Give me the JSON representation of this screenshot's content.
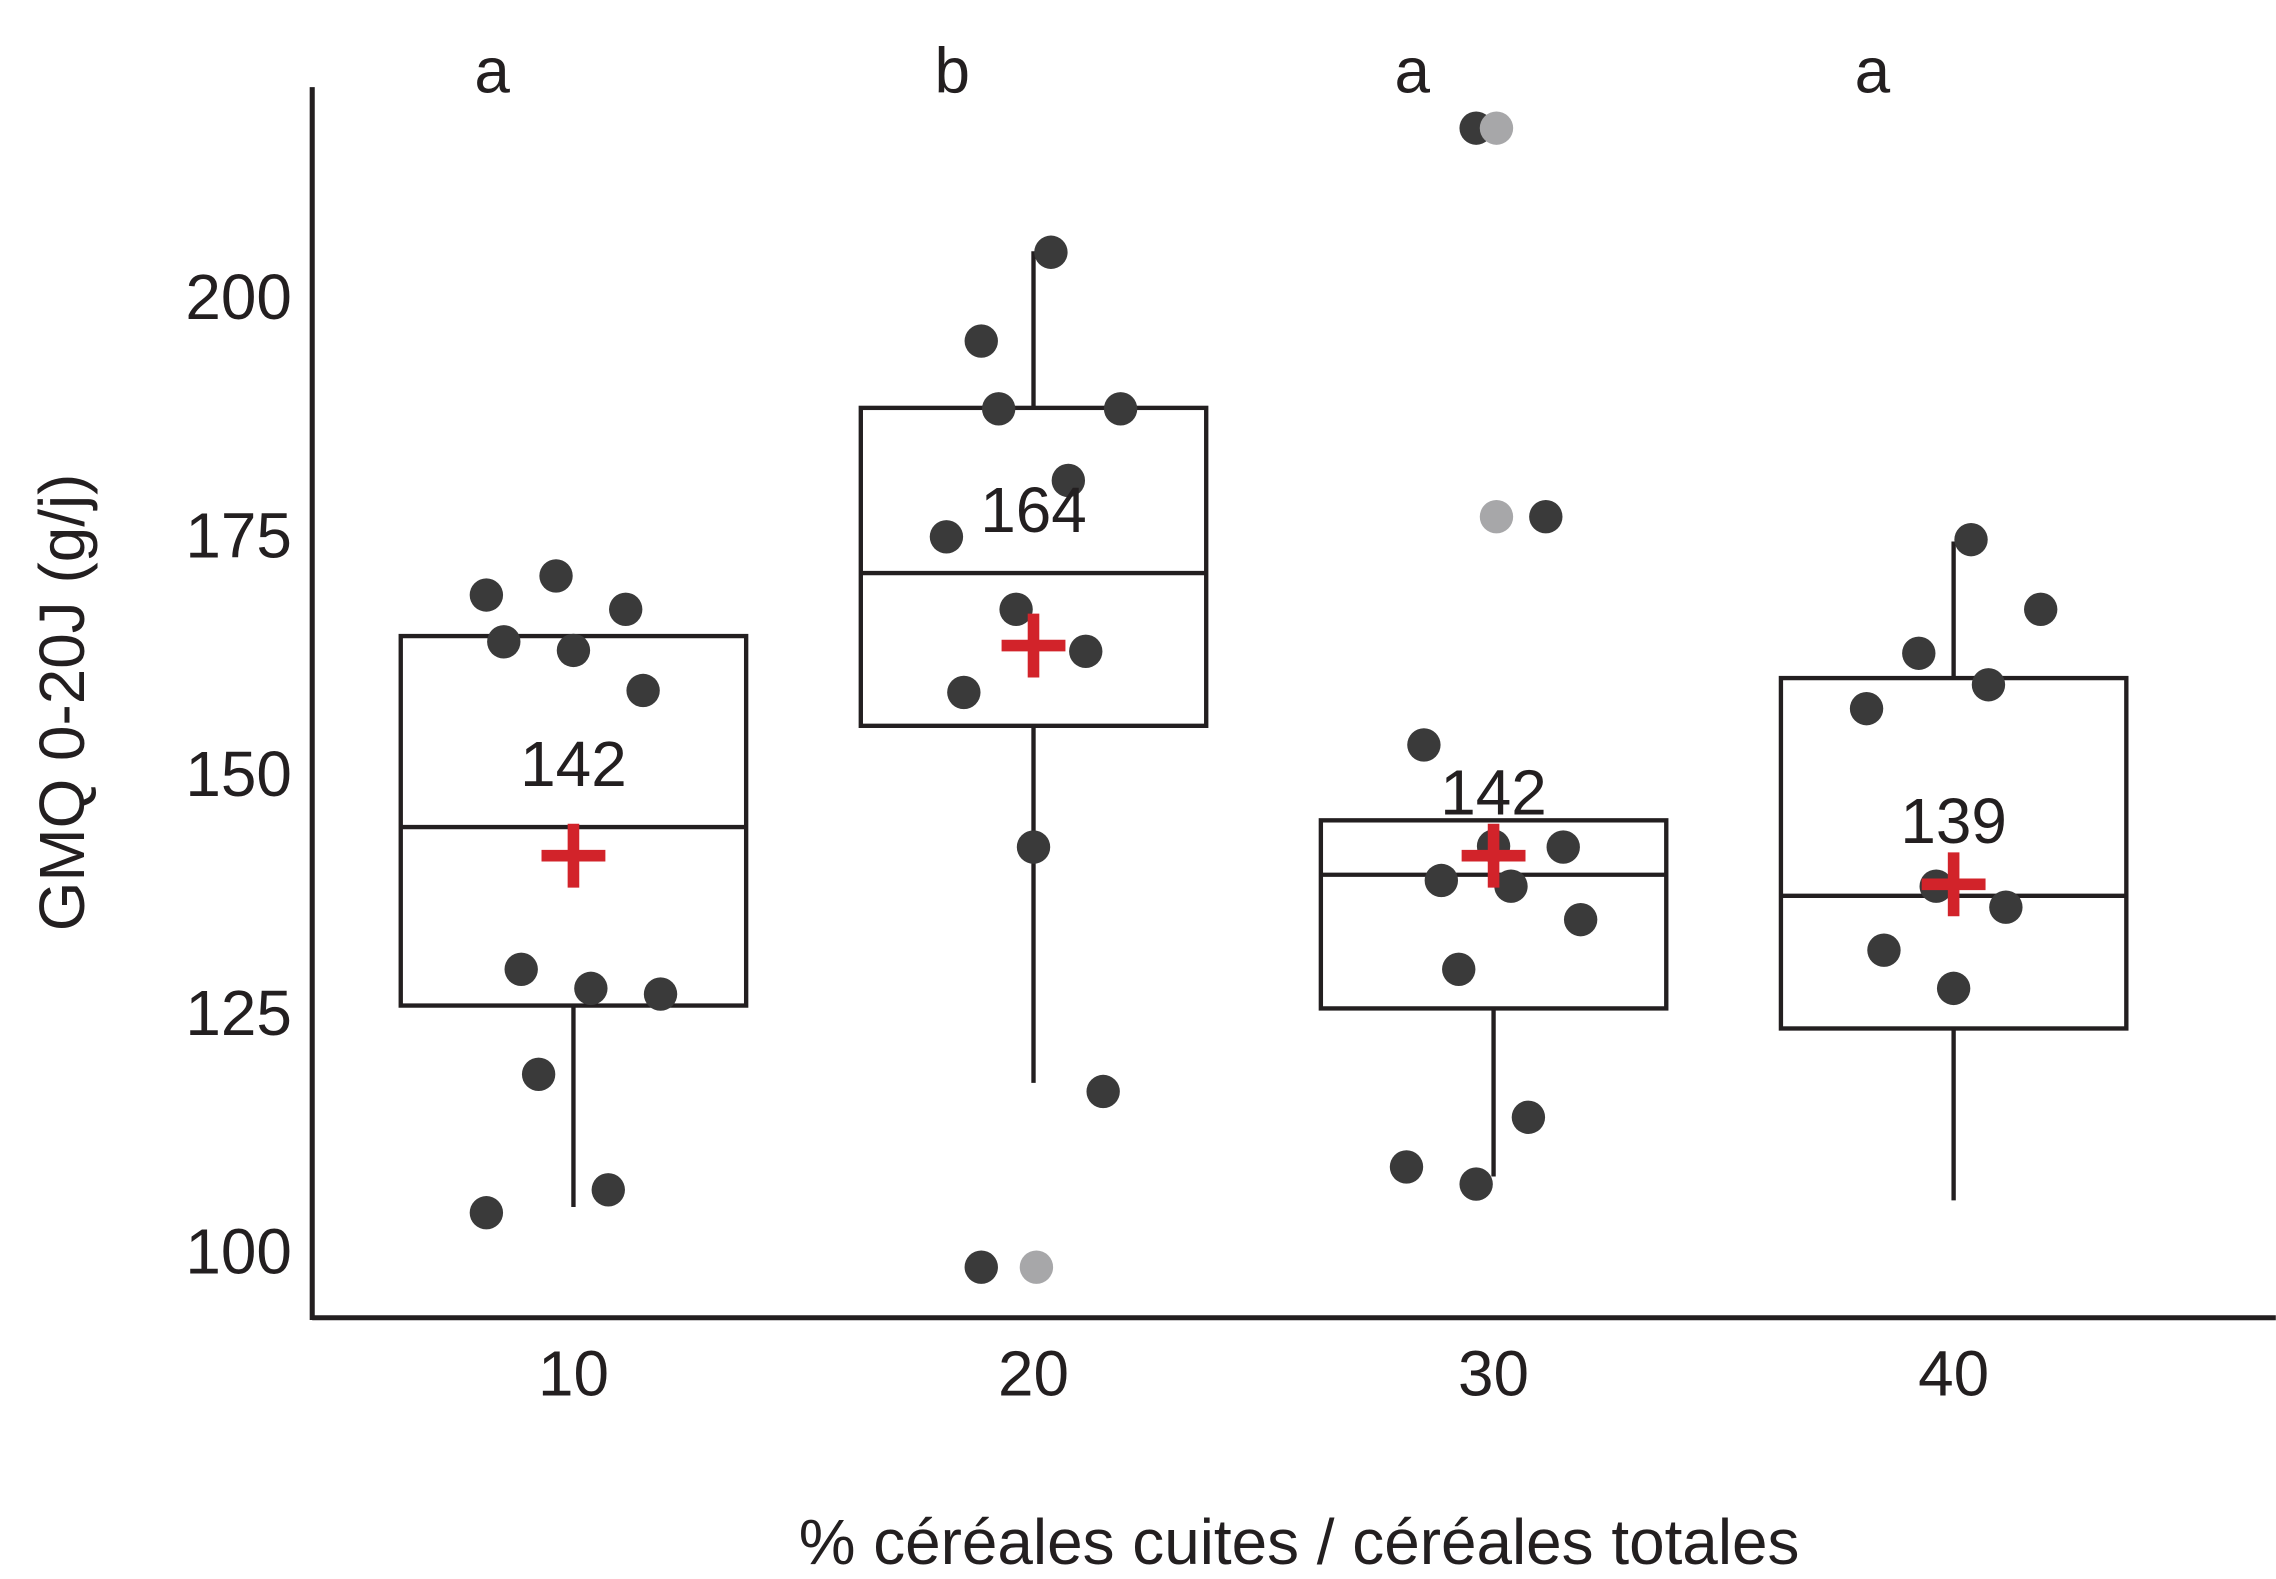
{
  "chart_data": {
    "type": "box",
    "x_label": "% céréales cuites / céréales totales",
    "y_label": "GMQ 0-20J (g/j)",
    "categories": [
      "10",
      "20",
      "30",
      "40"
    ],
    "letters": [
      "a",
      "b",
      "a",
      "a"
    ],
    "boxes": [
      {
        "whisker_low": 105.2,
        "q1": 126.3,
        "median": 145.0,
        "q3": 165.0,
        "whisker_high": 165.0
      },
      {
        "whisker_low": 118.2,
        "q1": 155.6,
        "median": 171.6,
        "q3": 188.9,
        "whisker_high": 205.3
      },
      {
        "whisker_low": 108.4,
        "q1": 126.0,
        "median": 140.0,
        "q3": 145.7,
        "whisker_high": 145.7
      },
      {
        "whisker_low": 105.9,
        "q1": 123.9,
        "median": 137.8,
        "q3": 160.6,
        "whisker_high": 174.9
      }
    ],
    "means": [
      142,
      164,
      142,
      139
    ],
    "points": [
      [
        169.3,
        171.3,
        167.8,
        164.4,
        163.5,
        159.3,
        130.1,
        128.1,
        127.5,
        119.1,
        107.0,
        104.6
      ],
      [
        195.9,
        205.2,
        188.8,
        188.8,
        181.3,
        175.4,
        167.8,
        163.4,
        159.1,
        142.9,
        117.3,
        98.9
      ],
      [
        218.2,
        177.5,
        153.6,
        143.0,
        142.9,
        139.4,
        138.8,
        135.3,
        130.1,
        114.6,
        109.4,
        107.6
      ],
      [
        175.1,
        167.8,
        163.2,
        159.9,
        157.4,
        138.8,
        136.6,
        132.1,
        128.1
      ]
    ],
    "outliers": [
      [],
      [
        98.9
      ],
      [
        218.2,
        177.5
      ],
      []
    ],
    "point_color": "#3a3a3a",
    "outlier_color": "#a7a7a9",
    "mean_color": "#d2232a",
    "box_color": "#231f20",
    "ylim": [
      93.6,
      222.5
    ],
    "yticks": [
      100,
      125,
      150,
      175,
      200
    ],
    "grid": false
  }
}
